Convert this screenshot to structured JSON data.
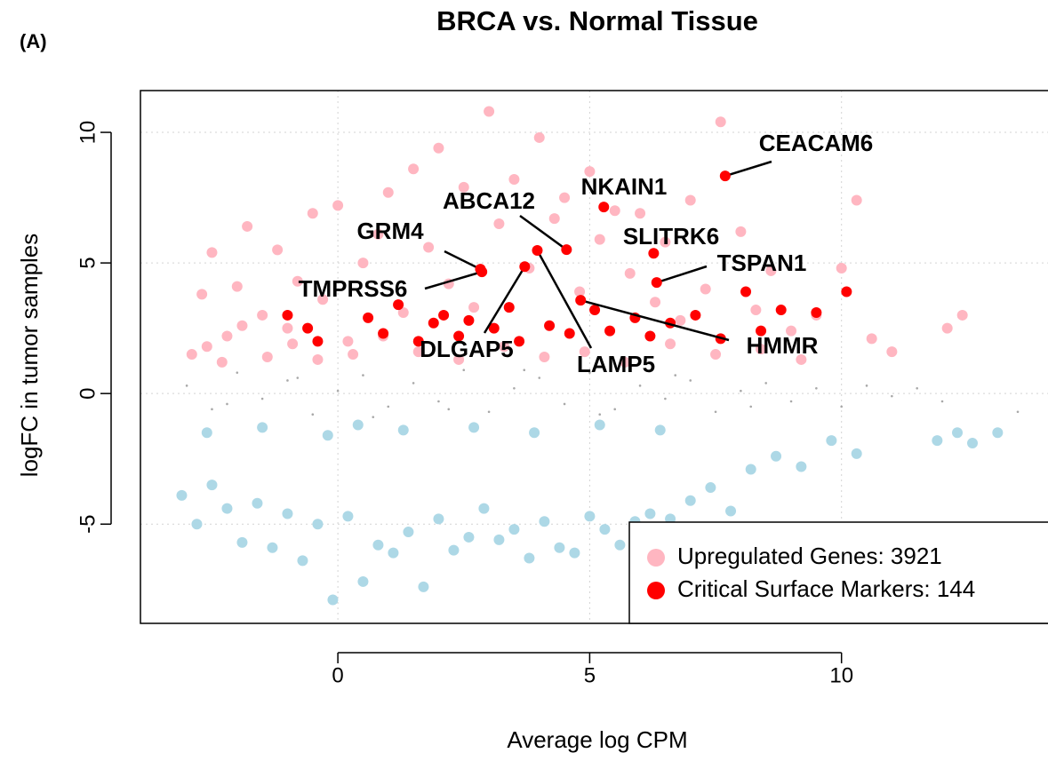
{
  "panel_label": "(A)",
  "chart_data": {
    "type": "scatter",
    "title": "BRCA vs. Normal Tissue",
    "xlabel": "Average log CPM",
    "ylabel": "logFC in tumor samples",
    "xlim": [
      -3.92,
      14.1
    ],
    "ylim": [
      -8.8,
      11.6
    ],
    "xticks": [
      0,
      5,
      10
    ],
    "yticks": [
      -5,
      0,
      5,
      10
    ],
    "grid": true,
    "legend": "lower right",
    "series": [
      {
        "color": "#a8a8a8",
        "size": "small",
        "x": [
          -3,
          -2.5,
          -2,
          -1.5,
          -1,
          -0.5,
          0,
          0.5,
          1,
          1.5,
          2,
          2.5,
          3,
          3.5,
          4,
          4.5,
          5,
          5.5,
          6,
          6.5,
          7,
          7.5,
          8,
          8.5,
          9,
          9.5,
          10,
          10.5,
          11,
          11.5,
          12,
          13.5,
          -2.2,
          -0.8,
          0.7,
          2.2,
          3.7,
          5.2,
          6.7,
          8.2
        ],
        "values": [
          0.3,
          -0.6,
          0.8,
          -0.2,
          0.5,
          -0.8,
          0.1,
          0.7,
          -0.5,
          0.4,
          -0.3,
          0.9,
          -0.7,
          0.2,
          0.6,
          -0.4,
          0.8,
          -0.6,
          0.3,
          -0.2,
          0.5,
          -0.7,
          0.1,
          0.4,
          -0.3,
          0.2,
          -0.5,
          0.3,
          -0.1,
          0.2,
          -0.3,
          -0.7,
          -0.4,
          0.6,
          -0.9,
          -0.6,
          0.9,
          -0.8,
          0.7,
          -0.5
        ]
      },
      {
        "color": "#add8e6",
        "size": "large",
        "x": [
          -3.1,
          -2.8,
          -2.5,
          -2.2,
          -1.9,
          -1.6,
          -1.3,
          -1,
          -0.7,
          -0.4,
          -0.1,
          0.2,
          0.5,
          0.8,
          1.1,
          1.4,
          1.7,
          2,
          2.3,
          2.6,
          2.9,
          3.2,
          3.5,
          3.8,
          4.1,
          4.4,
          4.7,
          5,
          5.3,
          5.6,
          5.9,
          6.2,
          6.6,
          7,
          7.4,
          7.8,
          8.2,
          8.7,
          9.2,
          9.8,
          10.3,
          11.9,
          12.3,
          12.6,
          13.1,
          -2.6,
          -1.5,
          -0.2,
          0.4,
          1.3,
          2.7,
          3.9,
          5.2,
          6.4
        ],
        "values": [
          -3.9,
          -5,
          -3.5,
          -4.4,
          -5.7,
          -4.2,
          -5.9,
          -4.6,
          -6.4,
          -5,
          -7.9,
          -4.7,
          -7.2,
          -5.8,
          -6.1,
          -5.3,
          -7.4,
          -4.8,
          -6,
          -5.5,
          -4.4,
          -5.6,
          -5.2,
          -6.3,
          -4.9,
          -5.9,
          -6.1,
          -4.7,
          -5.2,
          -5.8,
          -4.9,
          -4.6,
          -4.8,
          -4.1,
          -3.6,
          -4.5,
          -2.9,
          -2.4,
          -2.8,
          -1.8,
          -2.3,
          -1.8,
          -1.5,
          -1.9,
          -1.5,
          -1.5,
          -1.3,
          -1.6,
          -1.2,
          -1.4,
          -1.3,
          -1.5,
          -1.2,
          -1.4
        ]
      },
      {
        "name": "Upregulated Genes: 3921",
        "color": "#ffb6c1",
        "size": "large",
        "x": [
          -2.9,
          -2.7,
          -2.5,
          -2.2,
          -2,
          -1.8,
          -1.5,
          -1.2,
          -1,
          -0.8,
          -0.5,
          -0.3,
          0,
          0.2,
          0.5,
          0.8,
          1,
          1.3,
          1.5,
          1.8,
          2,
          2.2,
          2.5,
          2.7,
          3,
          3.2,
          3.5,
          3.8,
          4,
          4.3,
          4.5,
          4.8,
          5,
          5.2,
          5.5,
          5.8,
          6,
          6.3,
          6.5,
          6.8,
          7,
          7.3,
          7.6,
          8,
          8.3,
          8.6,
          9,
          9.5,
          10,
          10.3,
          10.6,
          11,
          12.1,
          12.4,
          -2.6,
          -2.3,
          -1.9,
          -1.4,
          -0.9,
          -0.4,
          0.3,
          0.9,
          1.6,
          2.4,
          3.3,
          4.1,
          4.9,
          5.7,
          6.6,
          7.5,
          8.4,
          9.2
        ],
        "values": [
          1.5,
          3.8,
          5.4,
          2.2,
          4.1,
          6.4,
          3,
          5.5,
          2.5,
          4.3,
          6.9,
          3.6,
          7.2,
          2,
          5,
          6.1,
          7.7,
          3.1,
          8.6,
          5.6,
          9.4,
          4.2,
          7.9,
          3.3,
          10.8,
          6.5,
          8.2,
          4.8,
          9.8,
          6.7,
          7.5,
          3.9,
          8.5,
          5.9,
          7,
          4.6,
          6.9,
          3.5,
          5.8,
          2.8,
          7.4,
          4,
          10.4,
          6.2,
          3.2,
          4.7,
          2.4,
          3,
          4.8,
          7.4,
          2.1,
          1.6,
          2.5,
          3,
          1.8,
          1.2,
          2.6,
          1.4,
          1.9,
          1.3,
          1.5,
          2.2,
          1.6,
          1.3,
          1.8,
          1.4,
          1.6,
          1.2,
          1.9,
          1.5,
          1.7,
          1.3
        ]
      },
      {
        "name": "Critical Surface Markers: 144",
        "color": "#ff0000",
        "size": "large",
        "x": [
          -1,
          -0.6,
          -0.4,
          0.6,
          0.9,
          1.2,
          1.6,
          1.9,
          2.1,
          2.4,
          2.6,
          3.1,
          3.4,
          3.6,
          4.2,
          4.6,
          5.1,
          5.4,
          5.9,
          6.2,
          6.6,
          7.1,
          7.6,
          8.1,
          8.4,
          8.8,
          9.5,
          10.1
        ],
        "values": [
          3,
          2.5,
          2,
          2.9,
          2.3,
          3.4,
          2,
          2.7,
          3,
          2.2,
          2.8,
          2.5,
          3.3,
          2,
          2.6,
          2.3,
          3.2,
          2.4,
          2.9,
          2.2,
          2.7,
          3,
          2.1,
          3.9,
          2.4,
          3.2,
          3.1,
          3.9
        ]
      }
    ],
    "annotations": [
      {
        "text": "CEACAM6",
        "x": 7.69,
        "y": 8.33
      },
      {
        "text": "NKAIN1",
        "x": 5.28,
        "y": 7.14
      },
      {
        "text": "ABCA12",
        "x": 4.54,
        "y": 5.51
      },
      {
        "text": "SLITRK6",
        "x": 6.27,
        "y": 5.37
      },
      {
        "text": "TSPAN1",
        "x": 6.33,
        "y": 4.25
      },
      {
        "text": "GRM4",
        "x": 2.83,
        "y": 4.76
      },
      {
        "text": "TMPRSS6",
        "x": 2.86,
        "y": 4.66
      },
      {
        "text": "DLGAP5",
        "x": 3.71,
        "y": 4.86
      },
      {
        "text": "LAMP5",
        "x": 3.96,
        "y": 5.48
      },
      {
        "text": "HMMR",
        "x": 4.82,
        "y": 3.57
      }
    ]
  }
}
